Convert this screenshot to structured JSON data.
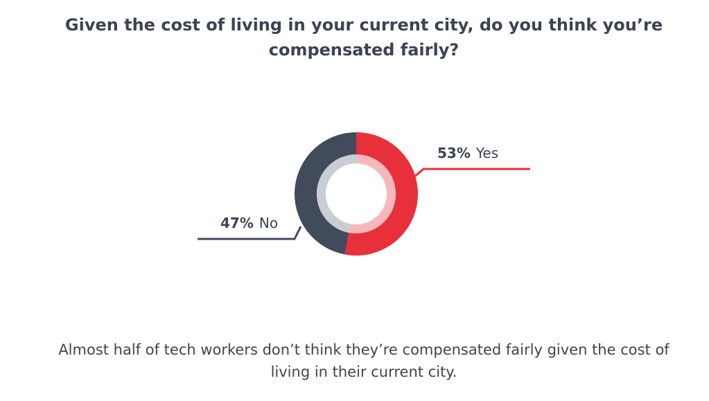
{
  "chart_data": {
    "type": "pie",
    "donut": true,
    "title": "Given the cost of living in your current city, do you think you’re compensated fairly?",
    "caption": "Almost half of tech workers don’t think they’re compensated fairly given the cost of living in their current city.",
    "categories": [
      "Yes",
      "No"
    ],
    "values": [
      53,
      47
    ],
    "value_labels": [
      "53%",
      "47%"
    ],
    "colors": [
      "#e8303a",
      "#414b5c"
    ],
    "inner_colors": [
      "#f5b9bd",
      "#c9cdd4"
    ]
  }
}
